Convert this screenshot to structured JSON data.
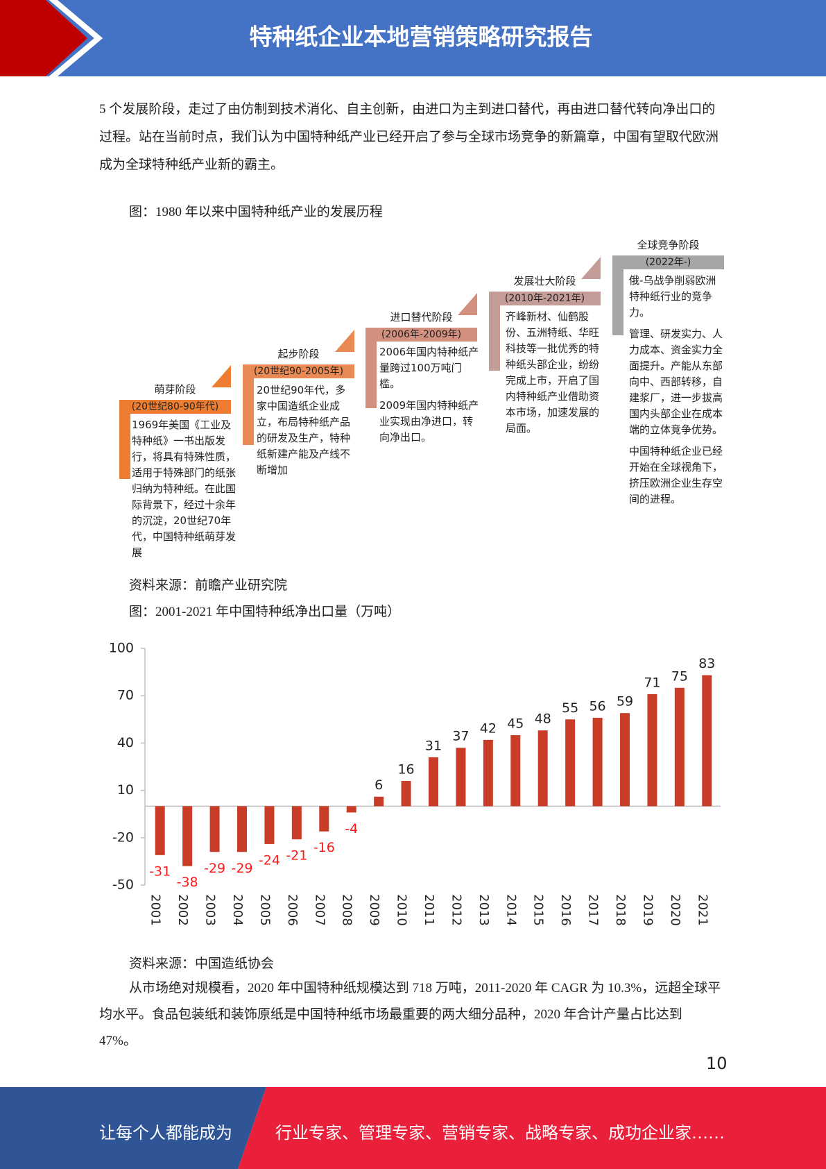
{
  "header": {
    "title": "特种纸企业本地营销策略研究报告"
  },
  "intro": "5 个发展阶段，走过了由仿制到技术消化、自主创新，由进口为主到进口替代，再由进口替代转向净出口的过程。站在当前时点，我们认为中国特种纸产业已经开启了参与全球市场竞争的新篇章，中国有望取代欧洲成为全球特种纸产业新的霸主。",
  "figure1": {
    "caption": "图：1980 年以来中国特种纸产业的发展历程",
    "stages": [
      {
        "title": "萌芽阶段",
        "period": "(20世纪80-90年代)",
        "color": "#ed7d31",
        "paragraphs": [
          "1969年美国《工业及特种纸》一书出版发行，将具有特殊性质，适用于特殊部门的纸张归纳为特种纸。在此国际背景下，经过十余年的沉淀，20世纪70年代，中国特种纸萌芽发展"
        ]
      },
      {
        "title": "起步阶段",
        "period": "(20世纪90-2005年)",
        "color": "#e98a55",
        "paragraphs": [
          "20世纪90年代，多家中国造纸企业成立，布局特种纸产品的研发及生产，特种纸新建产能及产线不断增加"
        ]
      },
      {
        "title": "进口替代阶段",
        "period": "(2006年-2009年)",
        "color": "#d4907e",
        "paragraphs": [
          "2006年国内特种纸产量跨过100万吨门槛。",
          "2009年国内特种纸产业实现由净进口，转向净出口。"
        ]
      },
      {
        "title": "发展壮大阶段",
        "period": "(2010年-2021年)",
        "color": "#c49c97",
        "paragraphs": [
          "齐峰新材、仙鹤股份、五洲特纸、华旺科技等一批优秀的特种纸头部企业，纷纷完成上市，开启了国内特种纸产业借助资本市场，加速发展的局面。"
        ]
      },
      {
        "title": "全球竞争阶段",
        "period": "(2022年-)",
        "color": "#a6a6a6",
        "paragraphs": [
          "俄-乌战争削弱欧洲特种纸行业的竞争力。",
          "管理、研发实力、人力成本、资金实力全面提升。产能从东部向中、西部转移，自建浆厂，进一步拔高国内头部企业在成本端的立体竞争优势。",
          "中国特种纸企业已经开始在全球视角下，挤压欧洲企业生存空间的进程。"
        ]
      }
    ],
    "source": "资料来源：前瞻产业研究院"
  },
  "chart_data": {
    "type": "bar",
    "title": "图：2001-2021 年中国特种纸净出口量（万吨）",
    "categories": [
      "2001",
      "2002",
      "2003",
      "2004",
      "2005",
      "2006",
      "2007",
      "2008",
      "2009",
      "2010",
      "2011",
      "2012",
      "2013",
      "2014",
      "2015",
      "2016",
      "2017",
      "2018",
      "2019",
      "2020",
      "2021"
    ],
    "values": [
      -31,
      -38,
      -29,
      -29,
      -24,
      -21,
      -16,
      -4,
      6,
      16,
      31,
      37,
      42,
      45,
      48,
      55,
      56,
      59,
      71,
      75,
      83
    ],
    "color": "#c83c28",
    "label_color": "#222222",
    "negative_label_color": "#ff1a1a",
    "ylim": [
      -50,
      100
    ],
    "yticks": [
      -50,
      -20,
      10,
      40,
      70,
      100
    ],
    "grid": false,
    "source": "资料来源：中国造纸协会"
  },
  "body": "从市场绝对规模看，2020 年中国特种纸规模达到 718 万吨，2011-2020 年 CAGR 为 10.3%，远超全球平均水平。食品包装纸和装饰原纸是中国特种纸市场最重要的两大细分品种，2020 年合计产量占比达到 47%。",
  "page_number": "10",
  "footer": {
    "left": "让每个人都能成为",
    "right": "行业专家、管理专家、营销专家、战略专家、成功企业家……"
  }
}
